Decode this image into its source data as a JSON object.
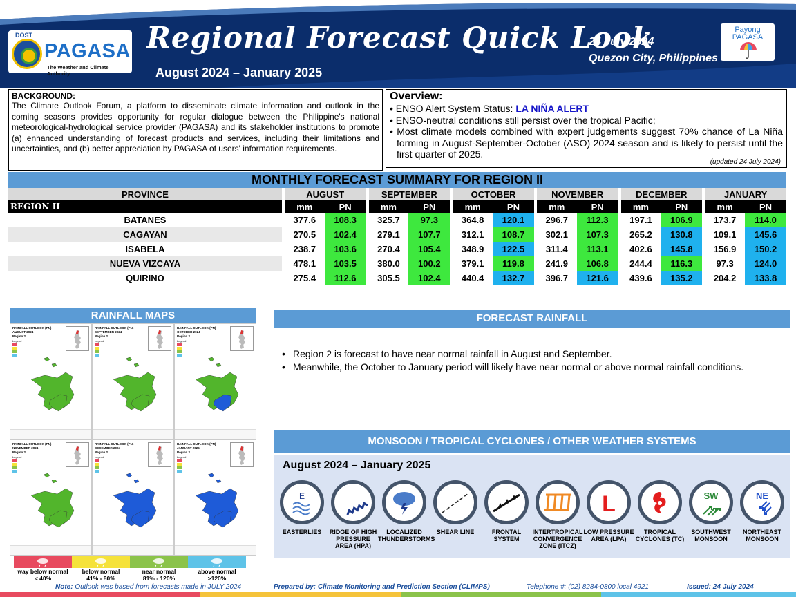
{
  "header": {
    "dost_label": "DOST",
    "agency_name": "PAGASA",
    "agency_subtitle": "The Weather and Climate Authority",
    "title": "Regional Forecast Quick Look",
    "period": "August 2024 – January 2025",
    "issue_date": "24 July 2024",
    "location": "Quezon City, Philippines",
    "payong_line1": "Payong",
    "payong_line2": "PAGASA"
  },
  "background": {
    "heading": "BACKGROUND:",
    "text": "The Climate Outlook Forum, a platform to disseminate climate information and outlook in the coming seasons provides opportunity for regular dialogue between the Philippine's national meteorological-hydrological service provider (PAGASA) and its stakeholder institutions to promote (a) enhanced understanding of forecast products and services, including their limitations and uncertainties, and (b) better appreciation by PAGASA of users' information requirements."
  },
  "overview": {
    "heading": "Overview:",
    "enso_label": "ENSO Alert System Status: ",
    "enso_status": "LA NIÑA ALERT",
    "item2": "ENSO-neutral conditions still persist over the tropical Pacific;",
    "item3": "Most climate models combined with expert judgements suggest 70% chance of La Niña forming in August-September-October (ASO) 2024 season and is likely to persist until the first quarter of 2025.",
    "updated": "(updated 24 July 2024)"
  },
  "forecast_table": {
    "title": "MONTHLY FORECAST SUMMARY FOR REGION II",
    "province_header": "PROVINCE",
    "region_label": "REGION II",
    "mm_label": "mm",
    "pn_label": "PN",
    "months": [
      "AUGUST",
      "SEPTEMBER",
      "OCTOBER",
      "NOVEMBER",
      "DECEMBER",
      "JANUARY"
    ],
    "rows": [
      {
        "province": "BATANES",
        "values": [
          [
            "377.6",
            "108.3",
            "g"
          ],
          [
            "325.7",
            "97.3",
            "g"
          ],
          [
            "364.8",
            "120.1",
            "b"
          ],
          [
            "296.7",
            "112.3",
            "g"
          ],
          [
            "197.1",
            "106.9",
            "g"
          ],
          [
            "173.7",
            "114.0",
            "g"
          ]
        ]
      },
      {
        "province": "CAGAYAN",
        "values": [
          [
            "270.5",
            "102.4",
            "g"
          ],
          [
            "279.1",
            "107.7",
            "g"
          ],
          [
            "312.1",
            "108.7",
            "g"
          ],
          [
            "302.1",
            "107.3",
            "g"
          ],
          [
            "265.2",
            "130.8",
            "b"
          ],
          [
            "109.1",
            "145.6",
            "b"
          ]
        ]
      },
      {
        "province": "ISABELA",
        "values": [
          [
            "238.7",
            "103.6",
            "g"
          ],
          [
            "270.4",
            "105.4",
            "g"
          ],
          [
            "348.9",
            "122.5",
            "b"
          ],
          [
            "311.4",
            "113.1",
            "g"
          ],
          [
            "402.6",
            "145.8",
            "b"
          ],
          [
            "156.9",
            "150.2",
            "b"
          ]
        ]
      },
      {
        "province": "NUEVA VIZCAYA",
        "values": [
          [
            "478.1",
            "103.5",
            "g"
          ],
          [
            "380.0",
            "100.2",
            "g"
          ],
          [
            "379.1",
            "119.8",
            "g"
          ],
          [
            "241.9",
            "106.8",
            "g"
          ],
          [
            "244.4",
            "116.3",
            "g"
          ],
          [
            "97.3",
            "124.0",
            "b"
          ]
        ]
      },
      {
        "province": "QUIRINO",
        "values": [
          [
            "275.4",
            "112.6",
            "g"
          ],
          [
            "305.5",
            "102.4",
            "g"
          ],
          [
            "440.4",
            "132.7",
            "b"
          ],
          [
            "396.7",
            "121.6",
            "b"
          ],
          [
            "439.6",
            "135.2",
            "b"
          ],
          [
            "204.2",
            "133.8",
            "b"
          ]
        ]
      }
    ],
    "colors": {
      "near_normal": "#3ee83e",
      "above_normal": "#1fb1ee"
    }
  },
  "rainfall_maps": {
    "title": "RAINFALL MAPS",
    "panels": [
      {
        "head1": "RAINFALL OUTLOOK (PN)",
        "head2": "AUGUST 2024",
        "head3": "Region 2",
        "fill": "#52b52c",
        "south": "#52b52c"
      },
      {
        "head1": "RAINFALL OUTLOOK (PN)",
        "head2": "SEPTEMBER 2024",
        "head3": "Region 2",
        "fill": "#52b52c",
        "south": "#52b52c"
      },
      {
        "head1": "RAINFALL OUTLOOK (PN)",
        "head2": "OCTOBER 2024",
        "head3": "Region 2",
        "fill": "#52b52c",
        "south": "#1e5bd8"
      },
      {
        "head1": "RAINFALL OUTLOOK (PN)",
        "head2": "NOVEMBER 2024",
        "head3": "Region 2",
        "fill": "#52b52c",
        "south": "#52b52c"
      },
      {
        "head1": "RAINFALL OUTLOOK (PN)",
        "head2": "DECEMBER 2024",
        "head3": "Region 2",
        "fill": "#1e5bd8",
        "south": "#1e5bd8"
      },
      {
        "head1": "RAINFALL OUTLOOK (PN)",
        "head2": "JANUARY 2025",
        "head3": "Region 2",
        "fill": "#1e5bd8",
        "south": "#1e5bd8"
      }
    ],
    "legend_title": "Legend",
    "scale": [
      {
        "label1": "way below normal",
        "label2": "< 40%",
        "color": "#e84a5f"
      },
      {
        "label1": "below normal",
        "label2": "41%  -  80%",
        "color": "#f5e23a"
      },
      {
        "label1": "near normal",
        "label2": "81% - 120%",
        "color": "#8bc34a"
      },
      {
        "label1": "above normal",
        "label2": ">120%",
        "color": "#5ec3e8"
      }
    ]
  },
  "forecast_rainfall": {
    "title": "FORECAST RAINFALL",
    "items": [
      "Region 2 is forecast to have near normal rainfall in August and September.",
      "Meanwhile, the October to January period will likely have near normal or above normal rainfall conditions."
    ]
  },
  "monsoon": {
    "title": "MONSOON  / TROPICAL CYCLONES / OTHER WEATHER SYSTEMS",
    "period": "August 2024 – January 2025",
    "systems": [
      {
        "label": "EASTERLIES",
        "icon": "easterlies-icon",
        "letter": "E"
      },
      {
        "label": "RIDGE OF HIGH PRESSURE AREA (HPA)",
        "icon": "ridge-icon",
        "letter": ""
      },
      {
        "label": "LOCALIZED THUNDERSTORMS",
        "icon": "thunderstorm-icon",
        "letter": ""
      },
      {
        "label": "SHEAR LINE",
        "icon": "shear-line-icon",
        "letter": ""
      },
      {
        "label": "FRONTAL SYSTEM",
        "icon": "frontal-system-icon",
        "letter": ""
      },
      {
        "label": "INTERTROPICAL CONVERGENCE ZONE (ITCZ)",
        "icon": "itcz-icon",
        "letter": ""
      },
      {
        "label": "LOW PRESSURE AREA (LPA)",
        "icon": "low-pressure-icon",
        "letter": "L"
      },
      {
        "label": "TROPICAL CYCLONES (TC)",
        "icon": "tropical-cyclone-icon",
        "letter": ""
      },
      {
        "label": "SOUTHWEST MONSOON",
        "icon": "southwest-monsoon-icon",
        "letter": "SW"
      },
      {
        "label": "NORTHEAST MONSOON",
        "icon": "northeast-monsoon-icon",
        "letter": "NE"
      }
    ]
  },
  "footer": {
    "note_label": "Note:",
    "note": "Outlook was based from forecasts made in JULY 2024",
    "prepared": "Prepared by: Climate Monitoring and Prediction Section (CLIMPS)",
    "telephone": "Telephone #: (02) 8284-0800 local 4921",
    "issued": "Issued: 24 July 2024"
  }
}
